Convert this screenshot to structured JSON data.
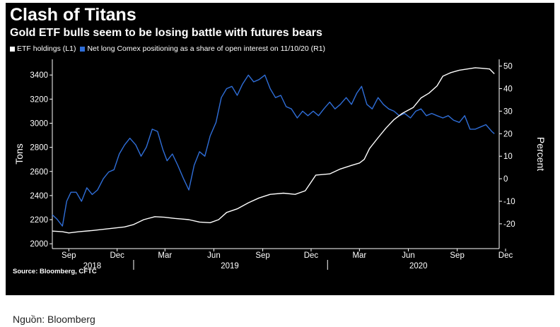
{
  "chart_data": {
    "type": "line",
    "title": "Clash of Titans",
    "subtitle": "Gold ETF bulls seem to be losing battle with futures bears",
    "source": "Source: Bloomberg, CFTC",
    "legend_position": "top-left",
    "grid": false,
    "x_tick_labels": [
      "Sep",
      "Dec",
      "Mar",
      "Jun",
      "Sep",
      "Dec",
      "Mar",
      "Jun",
      "Sep",
      "Dec"
    ],
    "x_tick_dates": [
      "2018-09",
      "2018-12",
      "2019-03",
      "2019-06",
      "2019-09",
      "2019-12",
      "2020-03",
      "2020-06",
      "2020-09",
      "2020-12"
    ],
    "x_year_labels": [
      "2018",
      "2019",
      "2020"
    ],
    "x_range": [
      "2018-08-01",
      "2020-11-10"
    ],
    "ylabel_left": "Tons",
    "ylabel_right": "Percent",
    "ylim_left": [
      1960,
      3530
    ],
    "ylim_right": [
      -31,
      53
    ],
    "y_ticks_left": [
      2000,
      2200,
      2400,
      2600,
      2800,
      3000,
      3200,
      3400
    ],
    "y_ticks_right": [
      -20,
      -10,
      0,
      10,
      20,
      30,
      40,
      50
    ],
    "series": [
      {
        "name": "ETF holdings (L1)",
        "axis": "left",
        "color": "#ffffff",
        "points": [
          [
            "2018-08-01",
            2105
          ],
          [
            "2018-08-20",
            2100
          ],
          [
            "2018-09-01",
            2090
          ],
          [
            "2018-09-20",
            2100
          ],
          [
            "2018-10-15",
            2110
          ],
          [
            "2018-11-15",
            2125
          ],
          [
            "2018-12-15",
            2140
          ],
          [
            "2019-01-01",
            2160
          ],
          [
            "2019-01-20",
            2200
          ],
          [
            "2019-02-10",
            2225
          ],
          [
            "2019-02-28",
            2220
          ],
          [
            "2019-03-20",
            2210
          ],
          [
            "2019-04-15",
            2200
          ],
          [
            "2019-05-05",
            2180
          ],
          [
            "2019-05-25",
            2175
          ],
          [
            "2019-06-10",
            2200
          ],
          [
            "2019-06-25",
            2260
          ],
          [
            "2019-07-15",
            2290
          ],
          [
            "2019-08-05",
            2340
          ],
          [
            "2019-08-25",
            2380
          ],
          [
            "2019-09-15",
            2410
          ],
          [
            "2019-10-10",
            2420
          ],
          [
            "2019-11-01",
            2410
          ],
          [
            "2019-11-20",
            2440
          ],
          [
            "2019-12-10",
            2570
          ],
          [
            "2020-01-05",
            2580
          ],
          [
            "2020-01-25",
            2620
          ],
          [
            "2020-02-15",
            2650
          ],
          [
            "2020-03-01",
            2670
          ],
          [
            "2020-03-10",
            2700
          ],
          [
            "2020-03-20",
            2790
          ],
          [
            "2020-04-05",
            2880
          ],
          [
            "2020-04-20",
            2960
          ],
          [
            "2020-05-05",
            3030
          ],
          [
            "2020-05-20",
            3080
          ],
          [
            "2020-06-10",
            3130
          ],
          [
            "2020-06-25",
            3210
          ],
          [
            "2020-07-10",
            3250
          ],
          [
            "2020-07-25",
            3310
          ],
          [
            "2020-08-05",
            3390
          ],
          [
            "2020-08-20",
            3420
          ],
          [
            "2020-09-05",
            3440
          ],
          [
            "2020-09-20",
            3450
          ],
          [
            "2020-10-05",
            3460
          ],
          [
            "2020-10-20",
            3455
          ],
          [
            "2020-11-01",
            3450
          ],
          [
            "2020-11-10",
            3410
          ]
        ]
      },
      {
        "name": "Net long Comex positioning as a share of open interest on 11/10/20 (R1)",
        "axis": "right",
        "color": "#2f6ed8",
        "points": [
          [
            "2018-08-01",
            -16
          ],
          [
            "2018-08-10",
            -18
          ],
          [
            "2018-08-20",
            -21
          ],
          [
            "2018-08-28",
            -10
          ],
          [
            "2018-09-05",
            -6
          ],
          [
            "2018-09-15",
            -6
          ],
          [
            "2018-09-25",
            -10
          ],
          [
            "2018-10-05",
            -4
          ],
          [
            "2018-10-15",
            -7
          ],
          [
            "2018-10-25",
            -5
          ],
          [
            "2018-11-05",
            0
          ],
          [
            "2018-11-15",
            3
          ],
          [
            "2018-11-25",
            4
          ],
          [
            "2018-12-05",
            11
          ],
          [
            "2018-12-15",
            15
          ],
          [
            "2018-12-25",
            18
          ],
          [
            "2019-01-05",
            15
          ],
          [
            "2019-01-15",
            10
          ],
          [
            "2019-01-25",
            14
          ],
          [
            "2019-02-05",
            22
          ],
          [
            "2019-02-15",
            21
          ],
          [
            "2019-02-25",
            13
          ],
          [
            "2019-03-05",
            8
          ],
          [
            "2019-03-15",
            11
          ],
          [
            "2019-03-25",
            6
          ],
          [
            "2019-04-05",
            0
          ],
          [
            "2019-04-15",
            -5
          ],
          [
            "2019-04-25",
            6
          ],
          [
            "2019-05-05",
            12
          ],
          [
            "2019-05-15",
            10
          ],
          [
            "2019-05-25",
            19
          ],
          [
            "2019-06-05",
            25
          ],
          [
            "2019-06-15",
            36
          ],
          [
            "2019-06-25",
            40
          ],
          [
            "2019-07-05",
            41
          ],
          [
            "2019-07-15",
            37
          ],
          [
            "2019-07-25",
            42
          ],
          [
            "2019-08-05",
            46
          ],
          [
            "2019-08-15",
            43
          ],
          [
            "2019-08-25",
            44
          ],
          [
            "2019-09-05",
            46
          ],
          [
            "2019-09-15",
            40
          ],
          [
            "2019-09-25",
            36
          ],
          [
            "2019-10-05",
            37
          ],
          [
            "2019-10-15",
            32
          ],
          [
            "2019-10-25",
            31
          ],
          [
            "2019-11-05",
            27
          ],
          [
            "2019-11-15",
            30
          ],
          [
            "2019-11-25",
            28
          ],
          [
            "2019-12-05",
            30
          ],
          [
            "2019-12-15",
            28
          ],
          [
            "2019-12-25",
            31
          ],
          [
            "2020-01-05",
            34
          ],
          [
            "2020-01-15",
            31
          ],
          [
            "2020-01-25",
            33
          ],
          [
            "2020-02-05",
            36
          ],
          [
            "2020-02-15",
            33
          ],
          [
            "2020-02-25",
            38
          ],
          [
            "2020-03-05",
            41
          ],
          [
            "2020-03-15",
            33
          ],
          [
            "2020-03-25",
            31
          ],
          [
            "2020-04-05",
            36
          ],
          [
            "2020-04-15",
            33
          ],
          [
            "2020-04-25",
            31
          ],
          [
            "2020-05-05",
            30
          ],
          [
            "2020-05-15",
            28
          ],
          [
            "2020-05-25",
            29
          ],
          [
            "2020-06-05",
            27
          ],
          [
            "2020-06-15",
            30
          ],
          [
            "2020-06-25",
            31
          ],
          [
            "2020-07-05",
            28
          ],
          [
            "2020-07-15",
            29
          ],
          [
            "2020-07-25",
            28
          ],
          [
            "2020-08-05",
            27
          ],
          [
            "2020-08-15",
            28
          ],
          [
            "2020-08-25",
            26
          ],
          [
            "2020-09-05",
            25
          ],
          [
            "2020-09-15",
            28
          ],
          [
            "2020-09-25",
            22
          ],
          [
            "2020-10-05",
            22
          ],
          [
            "2020-10-15",
            23
          ],
          [
            "2020-10-25",
            24
          ],
          [
            "2020-11-05",
            21
          ],
          [
            "2020-11-10",
            20
          ]
        ]
      }
    ]
  },
  "caption": "Nguồn: Bloomberg"
}
